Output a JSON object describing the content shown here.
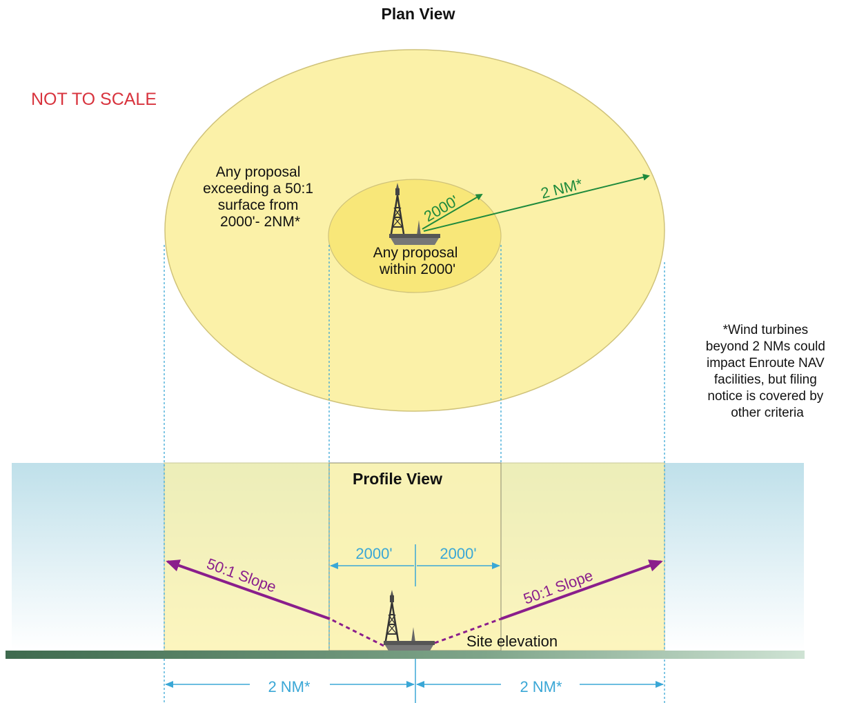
{
  "plan_view": {
    "title": "Plan View",
    "scale_note": "NOT TO SCALE",
    "outer_zone_label": [
      "Any proposal",
      "exceeding a 50:1",
      "surface from",
      "2000'- 2NM*"
    ],
    "inner_zone_label": [
      "Any proposal",
      "within 2000'"
    ],
    "inner_radius_label": "2000'",
    "outer_radius_label": "2 NM*"
  },
  "footnote": [
    "*Wind turbines",
    "beyond 2 NMs could",
    "impact Enroute NAV",
    "facilities, but filing",
    "notice is covered by",
    "other criteria"
  ],
  "profile_view": {
    "title": "Profile View",
    "left_inner_dim": "2000'",
    "right_inner_dim": "2000'",
    "left_slope_label": "50:1 Slope",
    "right_slope_label": "50:1 Slope",
    "site_label": "Site elevation",
    "left_outer_dim": "2 NM*",
    "right_outer_dim": "2 NM*"
  },
  "colors": {
    "outer_zone_fill": "#fbf1a8",
    "inner_zone_fill": "#f8e779",
    "radius_arrow": "#1e8a3c",
    "slope_arrow": "#8a1e8c",
    "dimension_line": "#3aa7d6",
    "scale_note": "#d8333d",
    "ground": "#3e6a4e"
  }
}
